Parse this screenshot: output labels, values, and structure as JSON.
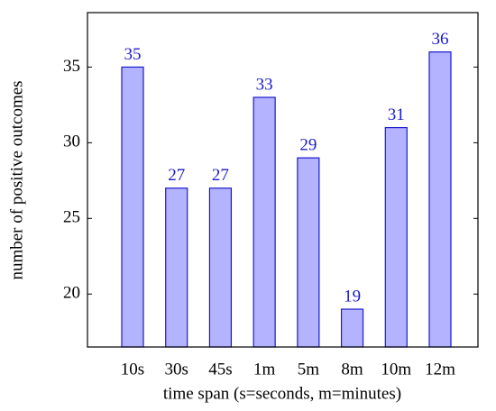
{
  "chart_data": {
    "type": "bar",
    "x_label": "time span (s=seconds, m=minutes)",
    "y_label": "number of positive outcomes",
    "categories": [
      "10s",
      "30s",
      "45s",
      "1m",
      "5m",
      "8m",
      "10m",
      "12m"
    ],
    "values": [
      35,
      27,
      27,
      33,
      29,
      19,
      31,
      36
    ],
    "color": "#b3b3ff",
    "edge_color": "#1a1acc",
    "label_color": "#1a1acc",
    "ylim": [
      16.5,
      38.6
    ],
    "yticks": [
      20,
      25,
      30,
      35
    ],
    "grid": false
  }
}
